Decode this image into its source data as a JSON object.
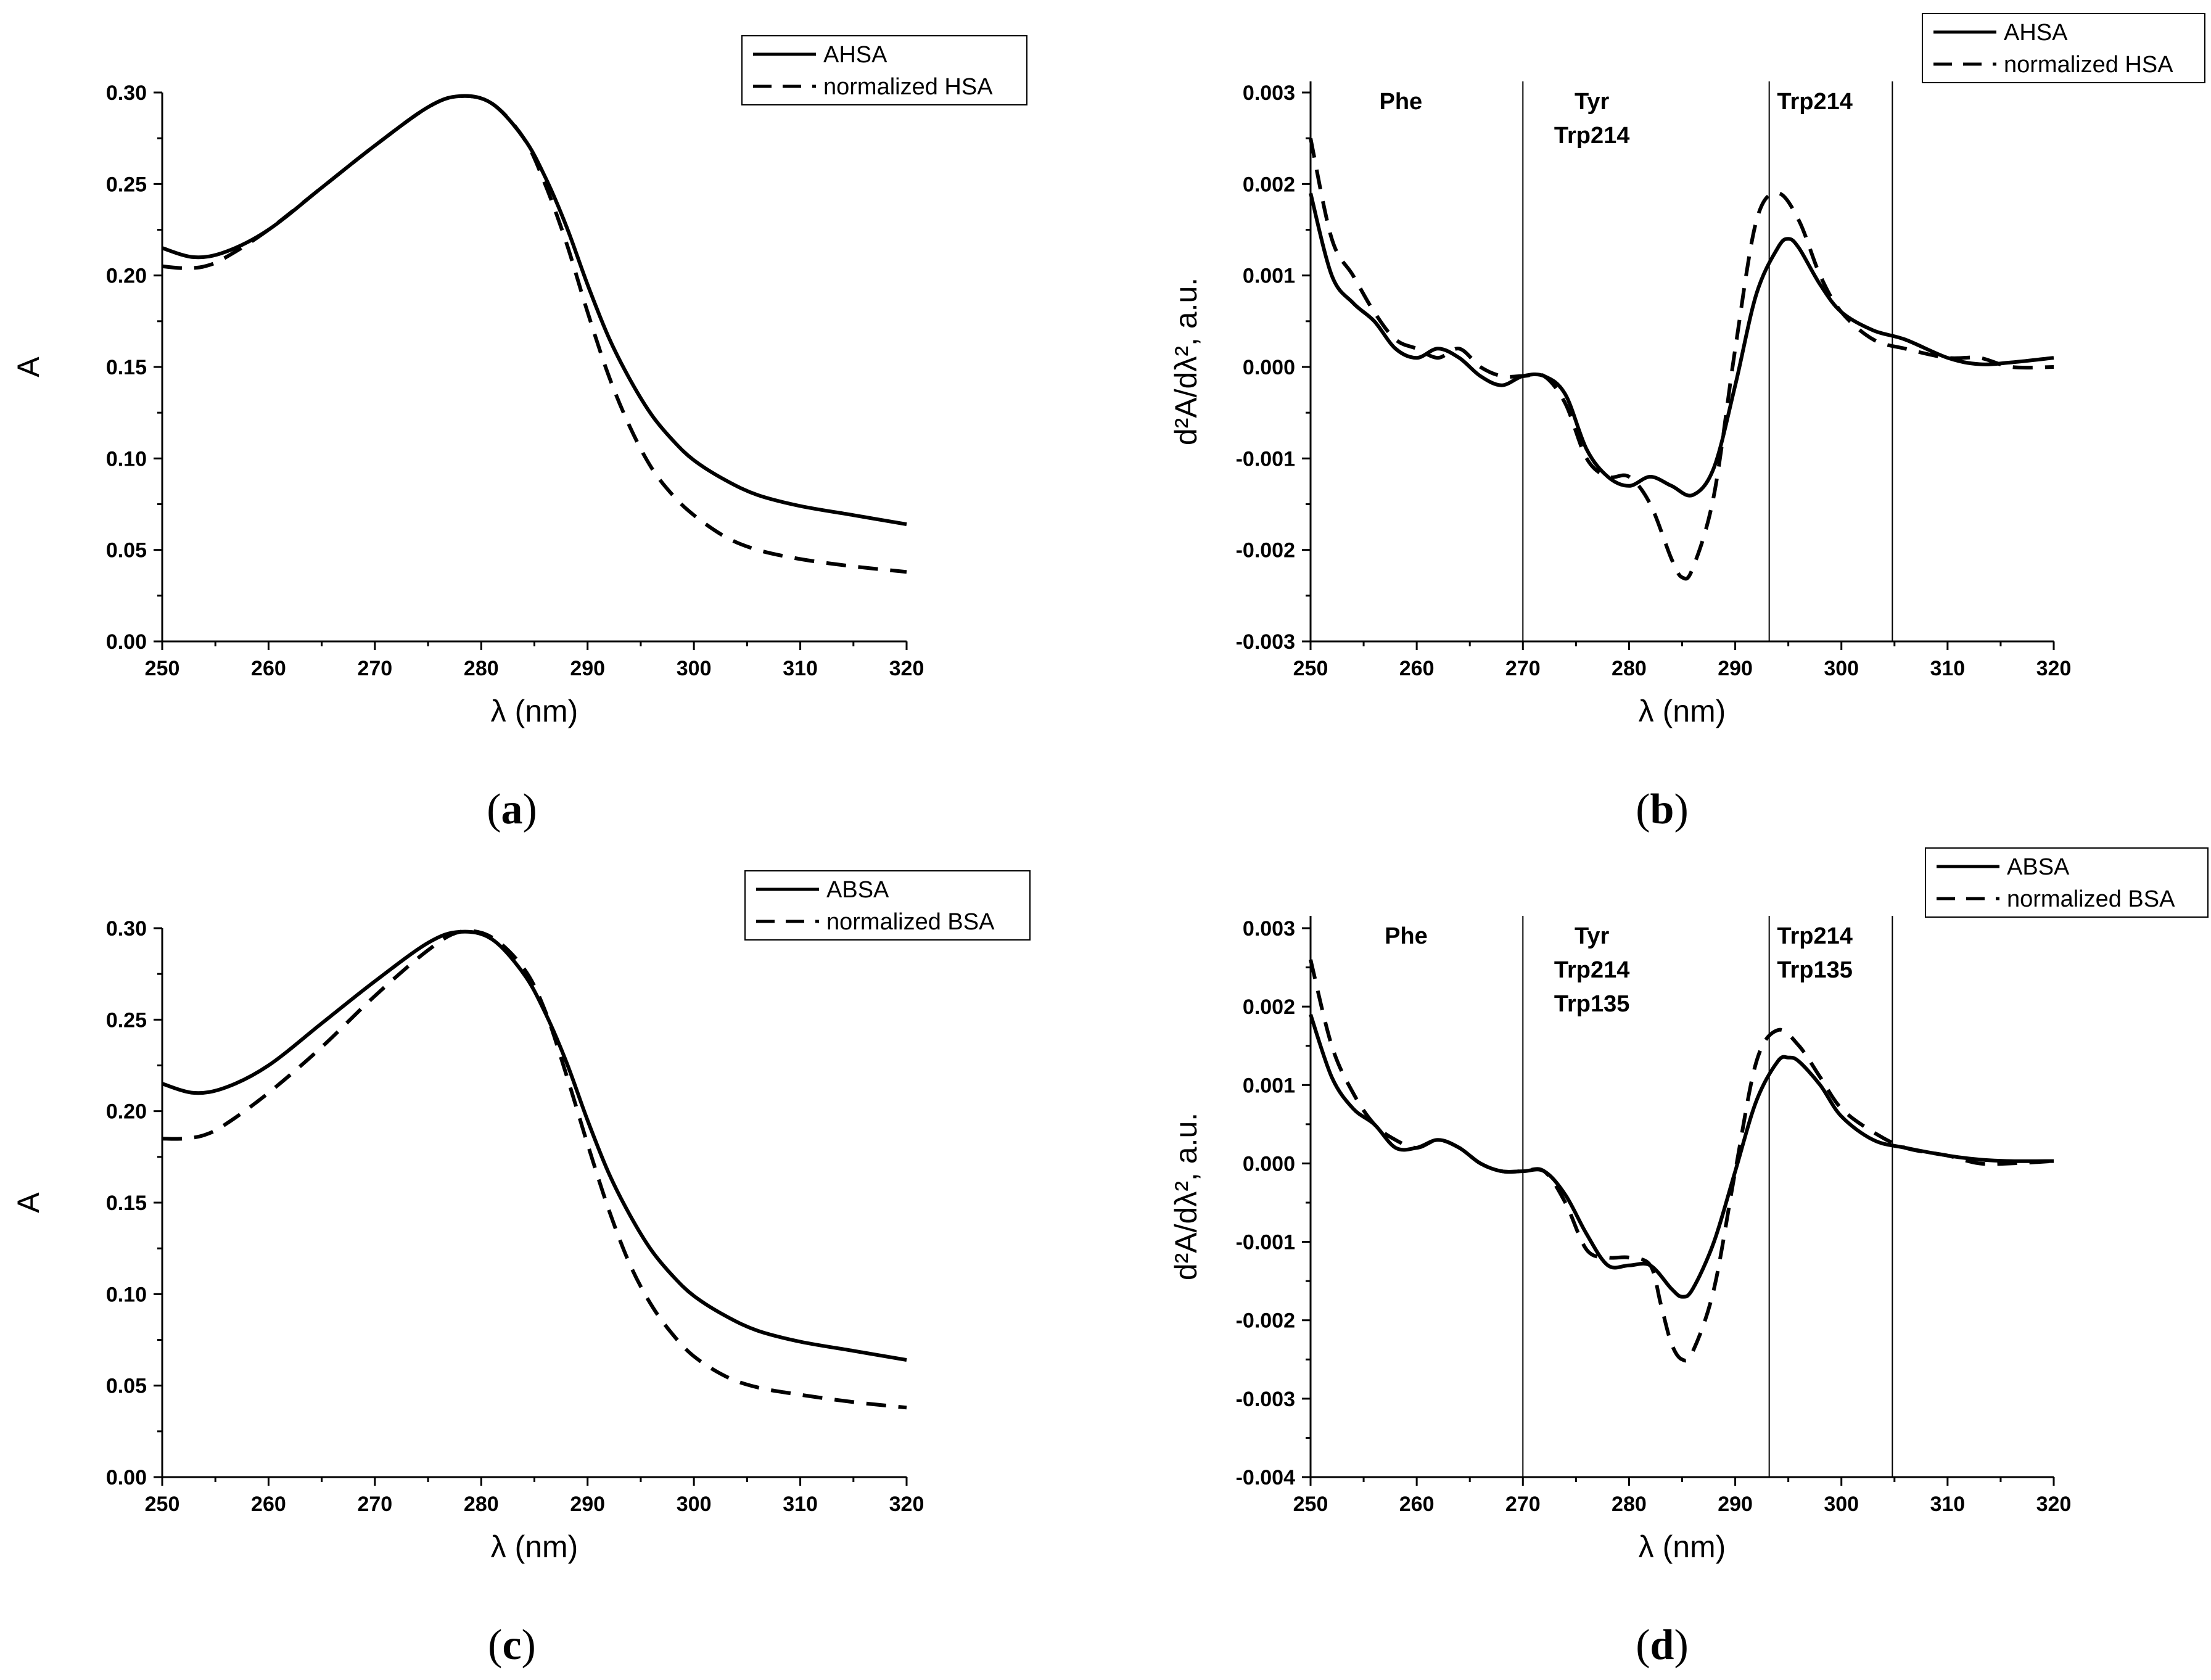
{
  "chart_data": [
    {
      "panel": "a",
      "type": "line",
      "xlabel": "λ (nm)",
      "ylabel": "A",
      "xlim": [
        250,
        320
      ],
      "ylim": [
        0,
        0.3
      ],
      "xticks": [
        "250",
        "260",
        "270",
        "280",
        "290",
        "300",
        "310",
        "320"
      ],
      "yticks": [
        "0.00",
        "0.05",
        "0.10",
        "0.15",
        "0.20",
        "0.25",
        "0.30"
      ],
      "legend": "top-right",
      "grid": false,
      "series": [
        {
          "name": "AHSA",
          "style": "solid",
          "x": [
            250,
            253,
            256,
            260,
            265,
            270,
            275,
            278,
            281,
            284,
            286,
            288,
            290,
            292,
            294,
            296,
            298,
            300,
            303,
            306,
            310,
            315,
            320
          ],
          "y": [
            0.215,
            0.21,
            0.213,
            0.225,
            0.248,
            0.271,
            0.292,
            0.298,
            0.294,
            0.275,
            0.254,
            0.227,
            0.195,
            0.166,
            0.143,
            0.124,
            0.11,
            0.099,
            0.088,
            0.08,
            0.074,
            0.069,
            0.064
          ]
        },
        {
          "name": "normalized HSA",
          "style": "dashed",
          "x": [
            250,
            252,
            254,
            256,
            260,
            265,
            270,
            275,
            278,
            281,
            284,
            286,
            288,
            290,
            292,
            294,
            296,
            298,
            300,
            303,
            306,
            310,
            315,
            320
          ],
          "y": [
            0.205,
            0.204,
            0.205,
            0.21,
            0.225,
            0.248,
            0.271,
            0.292,
            0.298,
            0.294,
            0.275,
            0.25,
            0.218,
            0.18,
            0.145,
            0.117,
            0.095,
            0.08,
            0.069,
            0.057,
            0.05,
            0.045,
            0.041,
            0.038
          ]
        }
      ]
    },
    {
      "panel": "b",
      "type": "line",
      "xlabel": "λ (nm)",
      "ylabel": "d²A/dλ², a.u.",
      "xlim": [
        250,
        320
      ],
      "ylim": [
        -0.003,
        0.003
      ],
      "xticks": [
        "250",
        "260",
        "270",
        "280",
        "290",
        "300",
        "310",
        "320"
      ],
      "yticks": [
        "-0.003",
        "-0.002",
        "-0.001",
        "0.000",
        "0.001",
        "0.002",
        "0.003"
      ],
      "vlines": [
        270,
        293.2,
        304.8
      ],
      "annotations": [
        {
          "lines": [
            "Phe"
          ],
          "x": 258.5
        },
        {
          "lines": [
            "Tyr",
            "Trp214"
          ],
          "x": 276.5
        },
        {
          "lines": [
            "Trp214"
          ],
          "x": 297.5
        }
      ],
      "legend": "top-right",
      "grid": false,
      "series": [
        {
          "name": "AHSA",
          "style": "solid",
          "x": [
            250,
            252,
            254,
            256,
            258,
            260,
            262,
            264,
            266,
            268,
            270,
            272,
            274,
            276,
            278,
            280,
            282,
            284,
            286,
            288,
            290,
            292,
            294,
            295,
            296,
            298,
            300,
            303,
            306,
            310,
            313,
            316,
            320
          ],
          "y": [
            0.0019,
            0.001,
            0.0007,
            0.0005,
            0.0002,
            0.0001,
            0.0002,
            0.0001,
            -0.0001,
            -0.0002,
            -0.0001,
            -0.0001,
            -0.0003,
            -0.0009,
            -0.0012,
            -0.0013,
            -0.0012,
            -0.0013,
            -0.0014,
            -0.0011,
            -0.0002,
            0.0008,
            0.0013,
            0.0014,
            0.0013,
            0.0009,
            0.0006,
            0.0004,
            0.0003,
            0.0001,
            3e-05,
            5e-05,
            0.0001
          ]
        },
        {
          "name": "normalized HSA",
          "style": "dashed",
          "x": [
            250,
            252,
            254,
            256,
            258,
            260,
            262,
            264,
            266,
            268,
            270,
            272,
            274,
            276,
            278,
            280,
            282,
            284,
            285,
            286,
            288,
            290,
            292,
            294,
            296,
            298,
            300,
            303,
            306,
            310,
            313,
            316,
            320
          ],
          "y": [
            0.0025,
            0.0014,
            0.001,
            0.0006,
            0.0003,
            0.0002,
            0.0001,
            0.0002,
            0.0,
            -0.0001,
            -0.0001,
            -0.0001,
            -0.0004,
            -0.001,
            -0.0012,
            -0.0012,
            -0.0015,
            -0.0021,
            -0.0023,
            -0.0022,
            -0.0014,
            0.0002,
            0.0016,
            0.0019,
            0.0016,
            0.001,
            0.0006,
            0.0003,
            0.0002,
            0.0001,
            0.0001,
            0.0,
            0.0
          ]
        }
      ]
    },
    {
      "panel": "c",
      "type": "line",
      "xlabel": "λ (nm)",
      "ylabel": "A",
      "xlim": [
        250,
        320
      ],
      "ylim": [
        0,
        0.3
      ],
      "xticks": [
        "250",
        "260",
        "270",
        "280",
        "290",
        "300",
        "310",
        "320"
      ],
      "yticks": [
        "0.00",
        "0.05",
        "0.10",
        "0.15",
        "0.20",
        "0.25",
        "0.30"
      ],
      "legend": "top-right",
      "grid": false,
      "series": [
        {
          "name": "ABSA",
          "style": "solid",
          "x": [
            250,
            253,
            256,
            260,
            265,
            270,
            275,
            278,
            281,
            284,
            286,
            288,
            290,
            292,
            294,
            296,
            298,
            300,
            303,
            306,
            310,
            315,
            320
          ],
          "y": [
            0.215,
            0.21,
            0.213,
            0.225,
            0.248,
            0.271,
            0.292,
            0.298,
            0.294,
            0.275,
            0.254,
            0.227,
            0.195,
            0.166,
            0.143,
            0.124,
            0.11,
            0.099,
            0.088,
            0.08,
            0.074,
            0.069,
            0.064
          ]
        },
        {
          "name": "normalized BSA",
          "style": "dashed",
          "x": [
            250,
            252,
            254,
            256,
            260,
            265,
            270,
            275,
            278,
            281,
            284,
            286,
            288,
            290,
            292,
            294,
            296,
            298,
            300,
            303,
            306,
            310,
            315,
            320
          ],
          "y": [
            0.185,
            0.185,
            0.187,
            0.193,
            0.21,
            0.235,
            0.263,
            0.288,
            0.298,
            0.295,
            0.278,
            0.255,
            0.22,
            0.182,
            0.146,
            0.116,
            0.094,
            0.078,
            0.066,
            0.055,
            0.049,
            0.045,
            0.041,
            0.038
          ]
        }
      ]
    },
    {
      "panel": "d",
      "type": "line",
      "xlabel": "λ (nm)",
      "ylabel": "d²A/dλ², a.u.",
      "xlim": [
        250,
        320
      ],
      "ylim": [
        -0.004,
        0.003
      ],
      "xticks": [
        "250",
        "260",
        "270",
        "280",
        "290",
        "300",
        "310",
        "320"
      ],
      "yticks": [
        "-0.004",
        "-0.003",
        "-0.002",
        "-0.001",
        "0.000",
        "0.001",
        "0.002",
        "0.003"
      ],
      "vlines": [
        270,
        293.2,
        304.8
      ],
      "annotations": [
        {
          "lines": [
            "Phe"
          ],
          "x": 259
        },
        {
          "lines": [
            "Tyr",
            "Trp214",
            "Trp135"
          ],
          "x": 276.5
        },
        {
          "lines": [
            "Trp214",
            "Trp135"
          ],
          "x": 297.5
        }
      ],
      "legend": "top-right",
      "grid": false,
      "series": [
        {
          "name": "ABSA",
          "style": "solid",
          "x": [
            250,
            252,
            254,
            256,
            258,
            260,
            262,
            264,
            266,
            268,
            270,
            272,
            274,
            276,
            278,
            280,
            282,
            284,
            285,
            286,
            288,
            290,
            292,
            294,
            295,
            296,
            298,
            300,
            303,
            306,
            310,
            313,
            316,
            320
          ],
          "y": [
            0.0019,
            0.0011,
            0.0007,
            0.0005,
            0.0002,
            0.0002,
            0.0003,
            0.0002,
            0.0,
            -0.0001,
            -0.0001,
            -0.0001,
            -0.0004,
            -0.0009,
            -0.0013,
            -0.0013,
            -0.0013,
            -0.0016,
            -0.0017,
            -0.0016,
            -0.001,
            -0.0001,
            0.0008,
            0.0013,
            0.00135,
            0.0013,
            0.001,
            0.0006,
            0.0003,
            0.0002,
            0.0001,
            5e-05,
            3e-05,
            3e-05
          ]
        },
        {
          "name": "normalized BSA",
          "style": "dashed",
          "x": [
            250,
            252,
            254,
            256,
            258,
            260,
            262,
            264,
            266,
            268,
            270,
            272,
            274,
            276,
            278,
            280,
            282,
            283,
            284,
            285,
            286,
            288,
            290,
            292,
            294,
            296,
            298,
            300,
            303,
            306,
            310,
            313,
            316,
            320
          ],
          "y": [
            0.0026,
            0.0015,
            0.0009,
            0.0005,
            0.0003,
            0.0002,
            0.0003,
            0.0002,
            0.0,
            -0.0001,
            -0.0001,
            -0.0001,
            -0.0005,
            -0.0011,
            -0.0012,
            -0.0012,
            -0.0013,
            -0.0018,
            -0.0023,
            -0.0025,
            -0.0024,
            -0.0016,
            -0.0001,
            0.0013,
            0.0017,
            0.0015,
            0.0011,
            0.0007,
            0.0004,
            0.0002,
            0.0001,
            0.0,
            0.0,
            3e-05
          ]
        }
      ]
    }
  ]
}
